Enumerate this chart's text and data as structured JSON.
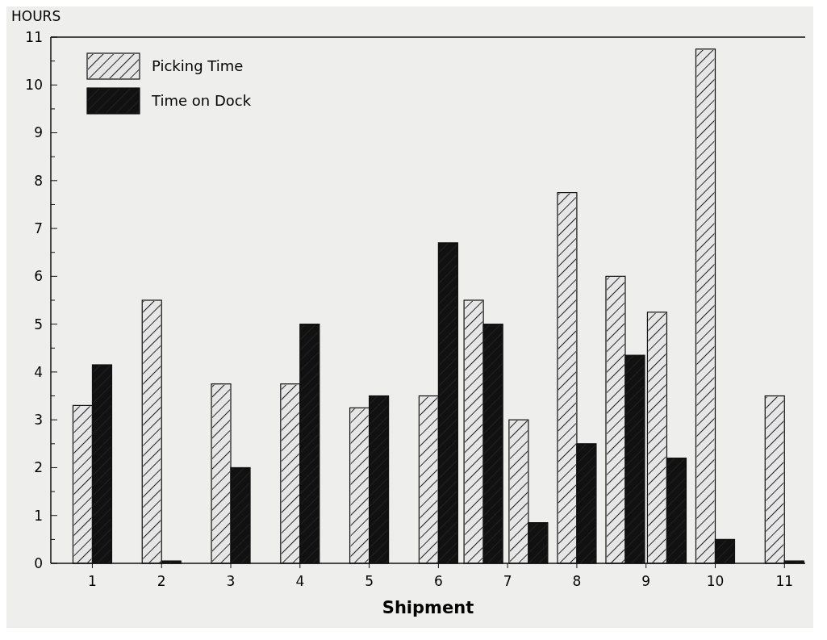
{
  "chart_data": {
    "type": "bar",
    "ylabel": "HOURS",
    "xlabel": "Shipment",
    "x": [
      1,
      2,
      3,
      4,
      5,
      6,
      6.65,
      7.3,
      8,
      8.7,
      9.3,
      10,
      11
    ],
    "series": [
      {
        "name": "Picking Time",
        "color": "#e6e6e6",
        "values": [
          3.3,
          5.5,
          3.75,
          3.75,
          3.25,
          3.5,
          5.5,
          3.0,
          7.75,
          6.0,
          5.25,
          10.75,
          3.5
        ]
      },
      {
        "name": "Time on Dock",
        "color": "#111111",
        "values": [
          4.15,
          0.05,
          2.0,
          5.0,
          3.5,
          6.7,
          5.0,
          0.85,
          2.5,
          4.35,
          2.2,
          0.5,
          0.05
        ]
      }
    ],
    "xlim": [
      0.4,
      11.3
    ],
    "xticks": [
      1,
      2,
      3,
      4,
      5,
      6,
      7,
      8,
      9,
      10,
      11
    ],
    "ylim": [
      0,
      11
    ],
    "yticks": [
      0,
      {
        "value": 0.5,
        "label": null
      },
      1,
      {
        "value": 1.5,
        "label": null
      },
      2,
      {
        "value": 2.5,
        "label": null
      },
      3,
      {
        "value": 3.5,
        "label": null
      },
      4,
      {
        "value": 4.5,
        "label": null
      },
      5,
      {
        "value": 5.5,
        "label": null
      },
      6,
      {
        "value": 6.5,
        "label": null
      },
      7,
      {
        "value": 7.5,
        "label": null
      },
      8,
      {
        "value": 8.5,
        "label": null
      },
      9,
      {
        "value": 9.5,
        "label": null
      },
      10,
      {
        "value": 10.5,
        "label": null
      },
      11
    ],
    "grid": false,
    "legend": "top left"
  }
}
